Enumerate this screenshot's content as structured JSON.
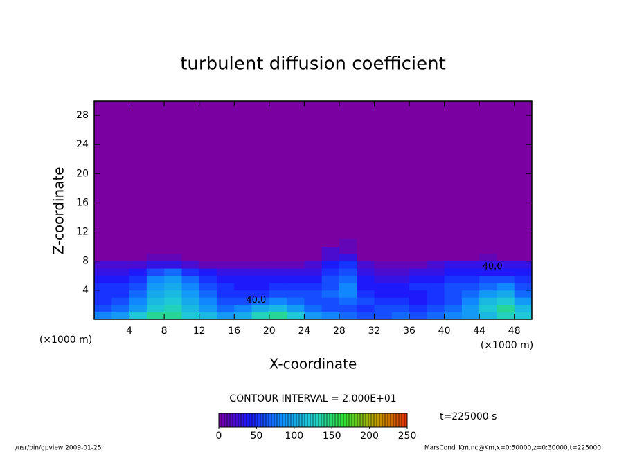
{
  "chart_data": {
    "type": "contour",
    "title": "turbulent diffusion coefficient",
    "x_label": "X-coordinate",
    "y_label": "Z-coordinate",
    "x_unit": "(×1000 m)",
    "y_unit": "(×1000 m)",
    "xlim": [
      0,
      50
    ],
    "ylim": [
      0,
      30
    ],
    "xticks": [
      4,
      8,
      12,
      16,
      20,
      24,
      28,
      32,
      36,
      40,
      44,
      48
    ],
    "yticks": [
      4,
      8,
      12,
      16,
      20,
      24,
      28
    ],
    "x": [
      1,
      3,
      5,
      7,
      9,
      11,
      13,
      15,
      17,
      19,
      21,
      23,
      25,
      27,
      29,
      31,
      33,
      35,
      37,
      39,
      41,
      43,
      45,
      47,
      49
    ],
    "z": [
      0.5,
      1.5,
      2.5,
      3.5,
      4.5,
      5.5,
      6.5,
      7.5,
      8.5,
      9.5,
      10.5
    ],
    "values": [
      [
        80,
        90,
        120,
        140,
        140,
        120,
        110,
        90,
        100,
        130,
        140,
        120,
        90,
        80,
        70,
        60,
        60,
        70,
        60,
        70,
        80,
        90,
        110,
        130,
        120
      ],
      [
        60,
        70,
        90,
        120,
        130,
        110,
        90,
        70,
        80,
        100,
        110,
        90,
        70,
        60,
        60,
        50,
        60,
        60,
        50,
        60,
        70,
        90,
        120,
        140,
        110
      ],
      [
        50,
        60,
        80,
        110,
        120,
        100,
        80,
        60,
        60,
        70,
        80,
        70,
        60,
        60,
        70,
        60,
        50,
        50,
        40,
        50,
        60,
        80,
        110,
        120,
        90
      ],
      [
        50,
        50,
        70,
        100,
        110,
        90,
        70,
        50,
        50,
        50,
        60,
        60,
        60,
        70,
        80,
        50,
        40,
        40,
        40,
        50,
        60,
        70,
        90,
        100,
        70
      ],
      [
        50,
        50,
        60,
        90,
        100,
        80,
        60,
        50,
        40,
        40,
        50,
        50,
        50,
        60,
        80,
        40,
        40,
        40,
        50,
        50,
        60,
        60,
        70,
        80,
        60
      ],
      [
        40,
        40,
        50,
        80,
        90,
        70,
        50,
        40,
        40,
        40,
        40,
        40,
        40,
        60,
        70,
        40,
        30,
        30,
        40,
        40,
        50,
        50,
        60,
        60,
        50
      ],
      [
        30,
        30,
        40,
        60,
        70,
        50,
        40,
        30,
        30,
        30,
        30,
        30,
        30,
        50,
        60,
        30,
        20,
        20,
        30,
        30,
        40,
        40,
        40,
        40,
        40
      ],
      [
        20,
        20,
        20,
        30,
        30,
        20,
        10,
        10,
        10,
        10,
        10,
        10,
        20,
        40,
        50,
        20,
        10,
        10,
        10,
        20,
        30,
        30,
        30,
        30,
        30
      ],
      [
        0,
        0,
        0,
        10,
        10,
        0,
        0,
        0,
        0,
        0,
        0,
        0,
        0,
        20,
        30,
        0,
        0,
        0,
        0,
        0,
        0,
        0,
        10,
        0,
        0
      ],
      [
        0,
        0,
        0,
        0,
        0,
        0,
        0,
        0,
        0,
        0,
        0,
        0,
        0,
        20,
        10,
        0,
        0,
        0,
        0,
        0,
        0,
        0,
        0,
        0,
        0
      ],
      [
        0,
        0,
        0,
        0,
        0,
        0,
        0,
        0,
        0,
        0,
        0,
        0,
        0,
        0,
        10,
        0,
        0,
        0,
        0,
        0,
        0,
        0,
        0,
        0,
        0
      ]
    ],
    "colormap": [
      "#7a00a2",
      "#1a1aff",
      "#1090ff",
      "#20d0d0",
      "#30e030",
      "#c0a000",
      "#e03000"
    ],
    "clim": [
      0,
      250
    ],
    "cticks": [
      0,
      50,
      100,
      150,
      200,
      250
    ],
    "contour_interval": "CONTOUR INTERVAL = 2.000E+01",
    "contour_labels": [
      {
        "text": "40.0",
        "x": 45.5,
        "z": 7.2
      },
      {
        "text": "40.0",
        "x": 18.5,
        "z": 2.6
      }
    ],
    "time_label": "t=225000 s",
    "footer_left": "/usr/bin/gpview  2009-01-25",
    "footer_right": "MarsCond_Km.nc@Km,x=0:50000,z=0:30000,t=225000"
  }
}
